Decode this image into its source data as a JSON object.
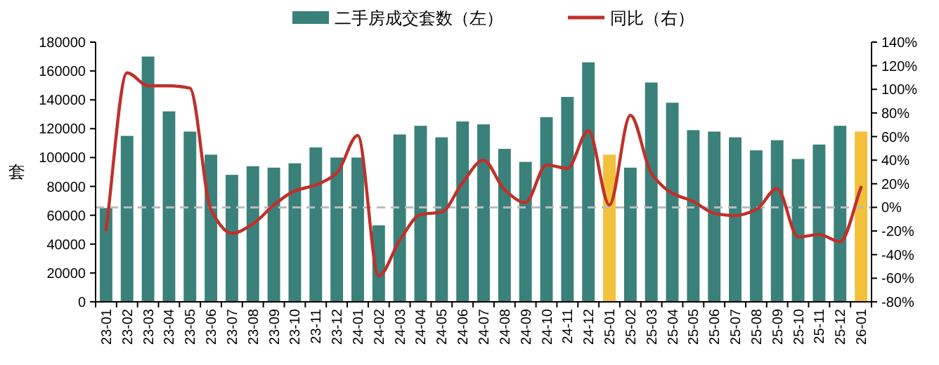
{
  "chart_data": {
    "type": "bar",
    "categories": [
      "23-01",
      "23-02",
      "23-03",
      "23-04",
      "23-05",
      "23-06",
      "23-07",
      "23-08",
      "23-09",
      "23-10",
      "23-11",
      "23-12",
      "24-01",
      "24-02",
      "24-03",
      "24-04",
      "24-05",
      "24-06",
      "24-07",
      "24-08",
      "24-09",
      "24-10",
      "24-11",
      "24-12",
      "25-01",
      "25-02",
      "25-03",
      "25-04",
      "25-05",
      "25-06",
      "25-07",
      "25-08",
      "25-09",
      "25-10",
      "25-11",
      "25-12",
      "26-01"
    ],
    "ylabel": "套",
    "series": [
      {
        "name": "二手房成交套数（左）",
        "type": "bar",
        "color": "#3a807b",
        "colors": [
          "#3a807b",
          "#3a807b",
          "#3a807b",
          "#3a807b",
          "#3a807b",
          "#3a807b",
          "#3a807b",
          "#3a807b",
          "#3a807b",
          "#3a807b",
          "#3a807b",
          "#3a807b",
          "#3a807b",
          "#3a807b",
          "#3a807b",
          "#3a807b",
          "#3a807b",
          "#3a807b",
          "#3a807b",
          "#3a807b",
          "#3a807b",
          "#3a807b",
          "#3a807b",
          "#3a807b",
          "#f2c03a",
          "#3a807b",
          "#3a807b",
          "#3a807b",
          "#3a807b",
          "#3a807b",
          "#3a807b",
          "#3a807b",
          "#3a807b",
          "#3a807b",
          "#3a807b",
          "#3a807b",
          "#f2c03a"
        ],
        "values": [
          65000,
          115000,
          170000,
          132000,
          118000,
          102000,
          88000,
          94000,
          93000,
          96000,
          107000,
          100000,
          100000,
          53000,
          116000,
          122000,
          114000,
          125000,
          123000,
          106000,
          97000,
          128000,
          142000,
          166000,
          102000,
          93000,
          152000,
          138000,
          119000,
          118000,
          114000,
          105000,
          112000,
          99000,
          109000,
          122000,
          118000
        ]
      },
      {
        "name": "同比（右）",
        "type": "line",
        "axis": "y2",
        "color": "#c0302a",
        "values": [
          -19,
          114,
          103,
          103,
          101,
          -2,
          -22,
          -14,
          2,
          14,
          19,
          29,
          61,
          -58,
          -28,
          -6,
          -4,
          21,
          40,
          15,
          4,
          36,
          33,
          65,
          2,
          78,
          29,
          12,
          5,
          -5,
          -7,
          -2,
          16,
          -25,
          -23,
          -29,
          17
        ]
      }
    ],
    "ylim": [
      0,
      180000
    ],
    "yticks": [
      0,
      20000,
      40000,
      60000,
      80000,
      100000,
      120000,
      140000,
      160000,
      180000
    ],
    "y2lim": [
      -80,
      140
    ],
    "y2ticks": [
      {
        "value": -80,
        "label": "-80%"
      },
      {
        "value": -60,
        "label": "-60%"
      },
      {
        "value": -40,
        "label": "-40%"
      },
      {
        "value": -20,
        "label": "-20%"
      },
      {
        "value": 0,
        "label": "0%"
      },
      {
        "value": 20,
        "label": "20%"
      },
      {
        "value": 40,
        "label": "40%"
      },
      {
        "value": 60,
        "label": "60%"
      },
      {
        "value": 80,
        "label": "80%"
      },
      {
        "value": 100,
        "label": "100%"
      },
      {
        "value": 120,
        "label": "120%"
      },
      {
        "value": 140,
        "label": "140%"
      }
    ],
    "ref_lines": [
      {
        "axis": "y2",
        "value": 0,
        "color": "#bbbbbb",
        "line_style": "dashed"
      }
    ],
    "grid": false,
    "legend": "top"
  }
}
